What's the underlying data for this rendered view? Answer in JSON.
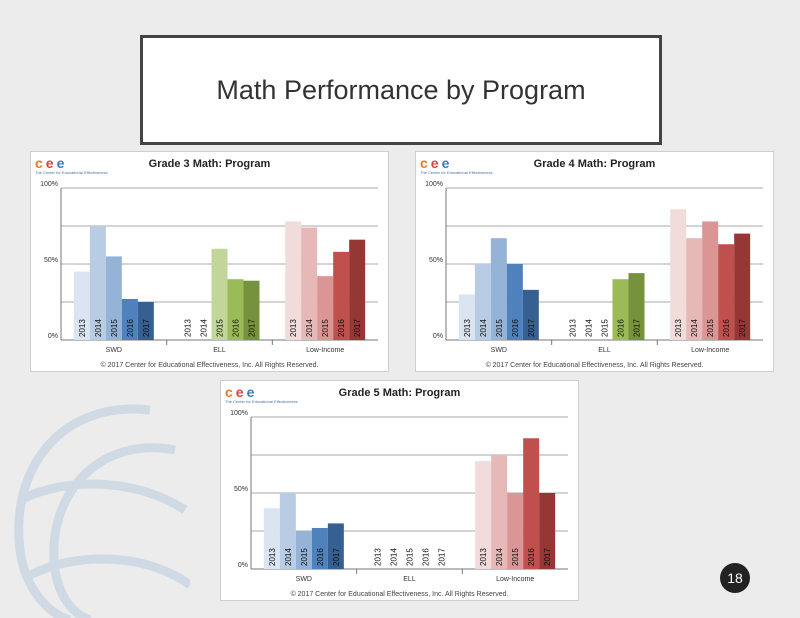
{
  "slide": {
    "title": "Math Performance  by Program",
    "page_number": "18"
  },
  "logo": {
    "letters": "cee",
    "subtitle": "The Center for Educational Effectiveness"
  },
  "copyright": "© 2017 Center for Educational Effectiveness, Inc. All Rights Reserved.",
  "chart_data": [
    {
      "type": "bar",
      "title": "Grade 3 Math: Program",
      "categories": [
        "SWD",
        "ELL",
        "Low-Income"
      ],
      "year_labels": [
        "2013",
        "2014",
        "2015",
        "2016",
        "2017"
      ],
      "y_ticks": [
        "0%",
        "50%",
        "100%"
      ],
      "ylim": [
        0,
        100
      ],
      "values": {
        "SWD": [
          45,
          75,
          55,
          27,
          25
        ],
        "ELL": [
          null,
          null,
          60,
          40,
          39
        ],
        "Low-Income": [
          78,
          74,
          42,
          58,
          66
        ]
      },
      "colors": {
        "SWD": [
          "#dbe5f1",
          "#b8cce4",
          "#95b3d7",
          "#4f81bd",
          "#366092"
        ],
        "ELL": [
          "#eaf1dd",
          "#d7e4bc",
          "#c2d69b",
          "#9bbb59",
          "#76923c"
        ],
        "Low-Income": [
          "#f2dcdb",
          "#e6b9b8",
          "#d99694",
          "#c0504d",
          "#953735"
        ]
      }
    },
    {
      "type": "bar",
      "title": "Grade 4 Math: Program",
      "categories": [
        "SWD",
        "ELL",
        "Low-Income"
      ],
      "year_labels": [
        "2013",
        "2014",
        "2015",
        "2016",
        "2017"
      ],
      "y_ticks": [
        "0%",
        "50%",
        "100%"
      ],
      "ylim": [
        0,
        100
      ],
      "values": {
        "SWD": [
          30,
          50,
          67,
          50,
          33
        ],
        "ELL": [
          null,
          null,
          null,
          40,
          44
        ],
        "Low-Income": [
          86,
          67,
          78,
          63,
          70
        ]
      },
      "colors": {
        "SWD": [
          "#dbe5f1",
          "#b8cce4",
          "#95b3d7",
          "#4f81bd",
          "#366092"
        ],
        "ELL": [
          "#eaf1dd",
          "#d7e4bc",
          "#c2d69b",
          "#9bbb59",
          "#76923c"
        ],
        "Low-Income": [
          "#f2dcdb",
          "#e6b9b8",
          "#d99694",
          "#c0504d",
          "#953735"
        ]
      }
    },
    {
      "type": "bar",
      "title": "Grade 5 Math: Program",
      "categories": [
        "SWD",
        "ELL",
        "Low-Income"
      ],
      "year_labels": [
        "2013",
        "2014",
        "2015",
        "2016",
        "2017"
      ],
      "y_ticks": [
        "0%",
        "50%",
        "100%"
      ],
      "ylim": [
        0,
        100
      ],
      "values": {
        "SWD": [
          40,
          50,
          25,
          27,
          30
        ],
        "ELL": [
          null,
          null,
          null,
          null,
          null
        ],
        "Low-Income": [
          71,
          75,
          50,
          86,
          50
        ]
      },
      "colors": {
        "SWD": [
          "#dbe5f1",
          "#b8cce4",
          "#95b3d7",
          "#4f81bd",
          "#366092"
        ],
        "ELL": [
          "#eaf1dd",
          "#d7e4bc",
          "#c2d69b",
          "#9bbb59",
          "#76923c"
        ],
        "Low-Income": [
          "#f2dcdb",
          "#e6b9b8",
          "#d99694",
          "#c0504d",
          "#953735"
        ]
      }
    }
  ]
}
